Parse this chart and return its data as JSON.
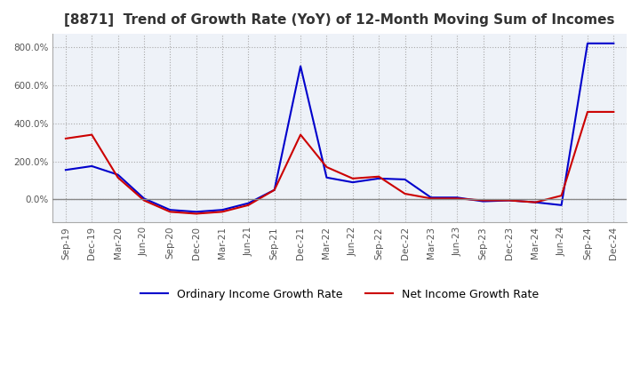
{
  "title": "[8871]  Trend of Growth Rate (YoY) of 12-Month Moving Sum of Incomes",
  "title_fontsize": 11,
  "background_color": "#ffffff",
  "plot_bg_color": "#eef2f8",
  "grid_color": "#aaaaaa",
  "zero_line_color": "#888888",
  "ordinary_color": "#0000cc",
  "net_color": "#cc0000",
  "legend_labels": [
    "Ordinary Income Growth Rate",
    "Net Income Growth Rate"
  ],
  "x_labels": [
    "Sep-19",
    "Dec-19",
    "Mar-20",
    "Jun-20",
    "Sep-20",
    "Dec-20",
    "Mar-21",
    "Jun-21",
    "Sep-21",
    "Dec-21",
    "Mar-22",
    "Jun-22",
    "Sep-22",
    "Dec-22",
    "Mar-23",
    "Jun-23",
    "Sep-23",
    "Dec-23",
    "Mar-24",
    "Jun-24",
    "Sep-24",
    "Dec-24"
  ],
  "ordinary_income_growth": [
    155,
    175,
    130,
    5,
    -55,
    -65,
    -55,
    -20,
    50,
    700,
    115,
    90,
    110,
    105,
    10,
    10,
    -10,
    -5,
    -15,
    -30,
    820,
    820
  ],
  "net_income_growth": [
    320,
    340,
    115,
    -5,
    -65,
    -75,
    -65,
    -30,
    50,
    340,
    170,
    110,
    120,
    30,
    5,
    5,
    -5,
    -5,
    -15,
    20,
    460,
    460
  ],
  "ylim": [
    -120,
    870
  ],
  "yticks": [
    0,
    200,
    400,
    600,
    800
  ]
}
